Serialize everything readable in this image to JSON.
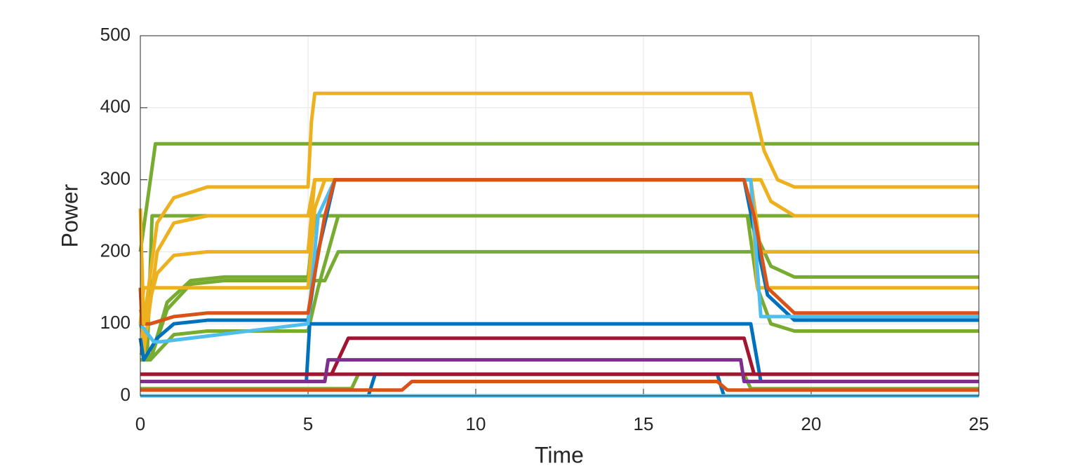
{
  "chart_data": {
    "type": "line",
    "xlabel": "Time",
    "ylabel": "Power",
    "xlim": [
      0,
      25
    ],
    "ylim": [
      0,
      500
    ],
    "xticks": [
      0,
      5,
      10,
      15,
      20,
      25
    ],
    "yticks": [
      0,
      100,
      200,
      300,
      400,
      500
    ],
    "grid": true,
    "series": [
      {
        "color": "#77AC30",
        "x": [
          0,
          0.45,
          25
        ],
        "values": [
          200,
          350,
          350
        ]
      },
      {
        "color": "#77AC30",
        "x": [
          0,
          0.2,
          0.35,
          25
        ],
        "values": [
          50,
          50,
          250,
          250
        ]
      },
      {
        "color": "#77AC30",
        "x": [
          0,
          0.3,
          0.8,
          1.5,
          2.5,
          5,
          5.5,
          5.9,
          25
        ],
        "values": [
          100,
          50,
          120,
          155,
          160,
          160,
          160,
          200,
          200
        ]
      },
      {
        "color": "#77AC30",
        "x": [
          0,
          0.3,
          0.8,
          1.5,
          2.5,
          5,
          5.2,
          5.8,
          18.1,
          18.4,
          18.8,
          19.5,
          25
        ],
        "values": [
          60,
          50,
          130,
          160,
          165,
          165,
          250,
          250,
          250,
          220,
          180,
          165,
          165
        ]
      },
      {
        "color": "#77AC30",
        "x": [
          0,
          0.3,
          0.5,
          1,
          2,
          5,
          5.3,
          5.9,
          18.1,
          18.4,
          18.8,
          19.5,
          25
        ],
        "values": [
          50,
          50,
          60,
          85,
          90,
          90,
          150,
          250,
          250,
          150,
          100,
          90,
          90
        ]
      },
      {
        "color": "#77AC30",
        "x": [
          0,
          6.3,
          6.5,
          18,
          18.2,
          25
        ],
        "values": [
          10,
          10,
          30,
          30,
          10,
          10
        ]
      },
      {
        "color": "#EDB120",
        "x": [
          0,
          0.1,
          0.5,
          1,
          2,
          5,
          5.2,
          5.3,
          18.3,
          18.5,
          18.8,
          19.5,
          25
        ],
        "values": [
          150,
          60,
          200,
          240,
          250,
          250,
          300,
          300,
          300,
          300,
          270,
          250,
          250
        ]
      },
      {
        "color": "#EDB120",
        "x": [
          0,
          0.1,
          0.5,
          1,
          2,
          5,
          5.2,
          5.5,
          18.2,
          18.5,
          25
        ],
        "values": [
          120,
          100,
          170,
          195,
          200,
          200,
          300,
          300,
          300,
          200,
          200
        ]
      },
      {
        "color": "#EDB120",
        "x": [
          0,
          0.1,
          5,
          5.2,
          5.5,
          18.2,
          18.4,
          25
        ],
        "values": [
          100,
          150,
          150,
          260,
          300,
          300,
          150,
          150
        ]
      },
      {
        "color": "#0072BD",
        "x": [
          0,
          0.1,
          0.5,
          1,
          2,
          5,
          5.3,
          5.8,
          18,
          18.3,
          18.7,
          19.5,
          25
        ],
        "values": [
          80,
          50,
          80,
          100,
          105,
          105,
          200,
          300,
          300,
          230,
          140,
          105,
          105
        ]
      },
      {
        "color": "#0072BD",
        "x": [
          0,
          4.95,
          5.05,
          18.2,
          18.5,
          25
        ],
        "values": [
          20,
          20,
          100,
          100,
          20,
          20
        ]
      },
      {
        "color": "#0072BD",
        "x": [
          0,
          6.8,
          7,
          17.2,
          17.4,
          25
        ],
        "values": [
          0,
          0,
          30,
          30,
          0,
          0
        ]
      },
      {
        "color": "#4DBEEE",
        "x": [
          0,
          0.4,
          0.6,
          5,
          5.3,
          5.8,
          18.2,
          18.5,
          25
        ],
        "values": [
          100,
          75,
          75,
          100,
          250,
          300,
          300,
          110,
          110
        ]
      },
      {
        "color": "#4DBEEE",
        "x": [
          0,
          25
        ],
        "values": [
          0,
          0
        ]
      },
      {
        "color": "#A2142F",
        "x": [
          0,
          5,
          5.7,
          6.2,
          18,
          18.3,
          25
        ],
        "values": [
          30,
          30,
          30,
          80,
          80,
          30,
          30
        ]
      },
      {
        "color": "#A2142F",
        "x": [
          0,
          25
        ],
        "values": [
          30,
          30
        ]
      },
      {
        "color": "#7E2F8E",
        "x": [
          0,
          5.5,
          5.6,
          17.9,
          18,
          25
        ],
        "values": [
          20,
          20,
          50,
          50,
          20,
          20
        ]
      },
      {
        "color": "#D95319",
        "x": [
          0,
          7.8,
          8.1,
          17.2,
          17.5,
          25
        ],
        "values": [
          8,
          8,
          20,
          20,
          8,
          8
        ]
      },
      {
        "color": "#D95319",
        "x": [
          0,
          0.05,
          0.3,
          1,
          2,
          5,
          5.5,
          5.8,
          18,
          18.3,
          18.7,
          19.5,
          25
        ],
        "values": [
          150,
          100,
          100,
          110,
          115,
          115,
          250,
          300,
          300,
          250,
          150,
          115,
          115
        ]
      },
      {
        "color": "#EDB120",
        "x": [
          0,
          0.1,
          0.5,
          1,
          2,
          5,
          5.1,
          5.2,
          18.2,
          18.6,
          19,
          19.5,
          25
        ],
        "values": [
          260,
          100,
          240,
          275,
          290,
          290,
          380,
          420,
          420,
          340,
          300,
          290,
          290
        ]
      }
    ]
  }
}
